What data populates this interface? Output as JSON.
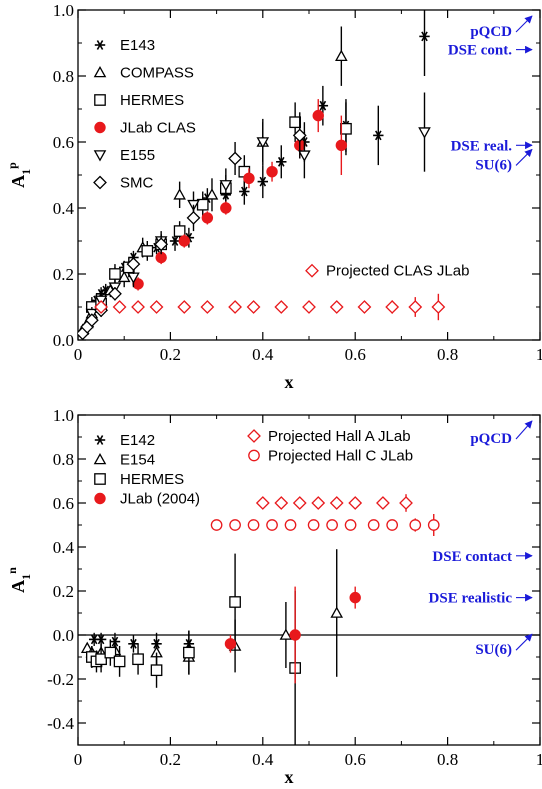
{
  "colors": {
    "red": "#e8191c",
    "black": "#000000",
    "blue": "#1a1ad9"
  },
  "chart_data": [
    {
      "type": "scatter",
      "panel": "top",
      "xlabel": "x",
      "ylabel": "A1p",
      "ylabel_main": "A",
      "ylabel_sub": "1",
      "ylabel_sup": "p",
      "xlim": [
        0,
        1
      ],
      "ylim": [
        0,
        1
      ],
      "x_ticks": [
        "0",
        "0.2",
        "0.4",
        "0.6",
        "0.8",
        "1"
      ],
      "y_ticks": [
        "0.0",
        "0.2",
        "0.4",
        "0.6",
        "0.8",
        "1.0"
      ],
      "legend_placement": "top-left",
      "series": [
        {
          "name": "E143",
          "marker": "asterisk",
          "color": "#000000",
          "points": [
            [
              0.03,
              0.09,
              0.02
            ],
            [
              0.04,
              0.12,
              0.02
            ],
            [
              0.05,
              0.14,
              0.02
            ],
            [
              0.06,
              0.15,
              0.02
            ],
            [
              0.08,
              0.2,
              0.02
            ],
            [
              0.1,
              0.22,
              0.02
            ],
            [
              0.12,
              0.25,
              0.02
            ],
            [
              0.15,
              0.27,
              0.02
            ],
            [
              0.17,
              0.28,
              0.02
            ],
            [
              0.21,
              0.3,
              0.03
            ],
            [
              0.24,
              0.31,
              0.03
            ],
            [
              0.28,
              0.43,
              0.03
            ],
            [
              0.32,
              0.44,
              0.04
            ],
            [
              0.36,
              0.45,
              0.04
            ],
            [
              0.4,
              0.48,
              0.05
            ],
            [
              0.44,
              0.54,
              0.05
            ],
            [
              0.49,
              0.6,
              0.06
            ],
            [
              0.53,
              0.71,
              0.06
            ],
            [
              0.58,
              0.65,
              0.08
            ],
            [
              0.65,
              0.62,
              0.09
            ],
            [
              0.75,
              0.92,
              0.12
            ]
          ]
        },
        {
          "name": "COMPASS",
          "marker": "triangle-up",
          "color": "#000000",
          "points": [
            [
              0.01,
              0.03,
              0.01
            ],
            [
              0.02,
              0.05,
              0.01
            ],
            [
              0.03,
              0.08,
              0.01
            ],
            [
              0.05,
              0.12,
              0.02
            ],
            [
              0.07,
              0.15,
              0.02
            ],
            [
              0.1,
              0.19,
              0.03
            ],
            [
              0.14,
              0.28,
              0.03
            ],
            [
              0.22,
              0.44,
              0.04
            ],
            [
              0.29,
              0.44,
              0.05
            ],
            [
              0.4,
              0.6,
              0.07
            ],
            [
              0.57,
              0.86,
              0.09
            ]
          ]
        },
        {
          "name": "HERMES",
          "marker": "square",
          "color": "#000000",
          "points": [
            [
              0.03,
              0.1,
              0.03
            ],
            [
              0.05,
              0.11,
              0.03
            ],
            [
              0.08,
              0.2,
              0.03
            ],
            [
              0.11,
              0.22,
              0.03
            ],
            [
              0.15,
              0.27,
              0.03
            ],
            [
              0.18,
              0.29,
              0.03
            ],
            [
              0.22,
              0.33,
              0.03
            ],
            [
              0.27,
              0.41,
              0.04
            ],
            [
              0.32,
              0.46,
              0.04
            ],
            [
              0.36,
              0.51,
              0.05
            ],
            [
              0.47,
              0.66,
              0.06
            ],
            [
              0.58,
              0.64,
              0.08
            ]
          ]
        },
        {
          "name": "JLab CLAS",
          "marker": "filled-circle",
          "color": "#e8191c",
          "points": [
            [
              0.13,
              0.17,
              0.02
            ],
            [
              0.18,
              0.25,
              0.02
            ],
            [
              0.23,
              0.3,
              0.02
            ],
            [
              0.28,
              0.37,
              0.02
            ],
            [
              0.32,
              0.4,
              0.02
            ],
            [
              0.37,
              0.49,
              0.03
            ],
            [
              0.42,
              0.51,
              0.03
            ],
            [
              0.48,
              0.59,
              0.04
            ],
            [
              0.52,
              0.68,
              0.05
            ],
            [
              0.57,
              0.59,
              0.09
            ]
          ]
        },
        {
          "name": "E155",
          "marker": "triangle-down",
          "color": "#000000",
          "points": [
            [
              0.03,
              0.08,
              0.02
            ],
            [
              0.05,
              0.12,
              0.02
            ],
            [
              0.08,
              0.16,
              0.02
            ],
            [
              0.12,
              0.19,
              0.03
            ],
            [
              0.18,
              0.3,
              0.03
            ],
            [
              0.25,
              0.41,
              0.04
            ],
            [
              0.32,
              0.47,
              0.05
            ],
            [
              0.4,
              0.6,
              0.06
            ],
            [
              0.49,
              0.56,
              0.07
            ],
            [
              0.75,
              0.63,
              0.12
            ]
          ]
        },
        {
          "name": "SMC",
          "marker": "diamond",
          "color": "#000000",
          "points": [
            [
              0.01,
              0.02,
              0.01
            ],
            [
              0.02,
              0.04,
              0.01
            ],
            [
              0.03,
              0.06,
              0.01
            ],
            [
              0.05,
              0.09,
              0.02
            ],
            [
              0.08,
              0.14,
              0.02
            ],
            [
              0.12,
              0.23,
              0.03
            ],
            [
              0.18,
              0.29,
              0.03
            ],
            [
              0.25,
              0.37,
              0.04
            ],
            [
              0.34,
              0.55,
              0.05
            ],
            [
              0.48,
              0.62,
              0.07
            ]
          ]
        },
        {
          "name": "Projected CLAS JLab",
          "marker": "diamond",
          "color": "#e8191c",
          "points": [
            [
              0.05,
              0.1,
              0.01
            ],
            [
              0.09,
              0.1,
              0.01
            ],
            [
              0.13,
              0.1,
              0.01
            ],
            [
              0.17,
              0.1,
              0.01
            ],
            [
              0.23,
              0.1,
              0.01
            ],
            [
              0.28,
              0.1,
              0.01
            ],
            [
              0.34,
              0.1,
              0.01
            ],
            [
              0.38,
              0.1,
              0.01
            ],
            [
              0.44,
              0.1,
              0.01
            ],
            [
              0.5,
              0.1,
              0.01
            ],
            [
              0.56,
              0.1,
              0.01
            ],
            [
              0.62,
              0.1,
              0.01
            ],
            [
              0.68,
              0.1,
              0.02
            ],
            [
              0.73,
              0.1,
              0.03
            ],
            [
              0.78,
              0.1,
              0.04
            ]
          ]
        }
      ],
      "legend": [
        {
          "label": "E143",
          "marker": "asterisk",
          "color": "#000000"
        },
        {
          "label": "COMPASS",
          "marker": "triangle-up",
          "color": "#000000"
        },
        {
          "label": "HERMES",
          "marker": "square",
          "color": "#000000"
        },
        {
          "label": "JLab CLAS",
          "marker": "filled-circle",
          "color": "#e8191c"
        },
        {
          "label": "E155",
          "marker": "triangle-down",
          "color": "#000000"
        },
        {
          "label": "SMC",
          "marker": "diamond",
          "color": "#000000"
        }
      ],
      "extra_legend": {
        "label": "Projected CLAS JLab",
        "marker": "diamond",
        "color": "#e8191c"
      },
      "annotations": [
        {
          "text": "pQCD",
          "value": 1.0
        },
        {
          "text": "DSE cont.",
          "value": 0.88
        },
        {
          "text": "DSE real.",
          "value": 0.59
        },
        {
          "text": "SU(6)",
          "value": 0.56
        }
      ]
    },
    {
      "type": "scatter",
      "panel": "bottom",
      "xlabel": "x",
      "ylabel": "A1n",
      "ylabel_main": "A",
      "ylabel_sub": "1",
      "ylabel_sup": "n",
      "xlim": [
        0,
        1
      ],
      "ylim": [
        -0.5,
        1
      ],
      "x_ticks": [
        "0",
        "0.2",
        "0.4",
        "0.6",
        "0.8",
        "1"
      ],
      "y_ticks": [
        "-0.4",
        "-0.2",
        "0.0",
        "0.2",
        "0.4",
        "0.6",
        "0.8",
        "1.0"
      ],
      "legend_placement": "top-left",
      "series": [
        {
          "name": "E142",
          "marker": "asterisk",
          "color": "#000000",
          "points": [
            [
              0.035,
              -0.02,
              0.03
            ],
            [
              0.05,
              -0.02,
              0.03
            ],
            [
              0.08,
              -0.03,
              0.04
            ],
            [
              0.12,
              -0.04,
              0.04
            ],
            [
              0.17,
              -0.04,
              0.05
            ],
            [
              0.24,
              -0.04,
              0.06
            ]
          ]
        },
        {
          "name": "E154",
          "marker": "triangle-up",
          "color": "#000000",
          "points": [
            [
              0.02,
              -0.06,
              0.02
            ],
            [
              0.03,
              -0.08,
              0.03
            ],
            [
              0.05,
              -0.08,
              0.04
            ],
            [
              0.08,
              -0.07,
              0.05
            ],
            [
              0.17,
              -0.08,
              0.06
            ],
            [
              0.24,
              -0.1,
              0.08
            ],
            [
              0.34,
              -0.05,
              0.12
            ],
            [
              0.45,
              0.0,
              0.15
            ],
            [
              0.56,
              0.1,
              0.29
            ]
          ]
        },
        {
          "name": "HERMES",
          "marker": "square",
          "color": "#000000",
          "points": [
            [
              0.03,
              -0.1,
              0.05
            ],
            [
              0.04,
              -0.12,
              0.05
            ],
            [
              0.05,
              -0.11,
              0.06
            ],
            [
              0.07,
              -0.08,
              0.06
            ],
            [
              0.09,
              -0.12,
              0.07
            ],
            [
              0.13,
              -0.11,
              0.07
            ],
            [
              0.17,
              -0.16,
              0.08
            ],
            [
              0.24,
              -0.08,
              0.1
            ],
            [
              0.34,
              0.15,
              0.22
            ],
            [
              0.47,
              -0.15,
              0.35
            ]
          ]
        },
        {
          "name": "JLab (2004)",
          "marker": "filled-circle",
          "color": "#e8191c",
          "points": [
            [
              0.33,
              -0.04,
              0.04
            ],
            [
              0.47,
              0.0,
              0.22
            ],
            [
              0.6,
              0.17,
              0.05
            ]
          ]
        },
        {
          "name": "Projected Hall A JLab",
          "marker": "diamond",
          "color": "#e8191c",
          "points": [
            [
              0.4,
              0.6,
              0.01
            ],
            [
              0.44,
              0.6,
              0.01
            ],
            [
              0.48,
              0.6,
              0.01
            ],
            [
              0.52,
              0.6,
              0.01
            ],
            [
              0.56,
              0.6,
              0.01
            ],
            [
              0.6,
              0.6,
              0.01
            ],
            [
              0.66,
              0.6,
              0.02
            ],
            [
              0.71,
              0.6,
              0.04
            ]
          ]
        },
        {
          "name": "Projected Hall C JLab",
          "marker": "circle",
          "color": "#e8191c",
          "points": [
            [
              0.3,
              0.5,
              0.01
            ],
            [
              0.34,
              0.5,
              0.01
            ],
            [
              0.38,
              0.5,
              0.01
            ],
            [
              0.42,
              0.5,
              0.01
            ],
            [
              0.46,
              0.5,
              0.01
            ],
            [
              0.51,
              0.5,
              0.01
            ],
            [
              0.55,
              0.5,
              0.01
            ],
            [
              0.59,
              0.5,
              0.01
            ],
            [
              0.64,
              0.5,
              0.01
            ],
            [
              0.68,
              0.5,
              0.02
            ],
            [
              0.73,
              0.5,
              0.03
            ],
            [
              0.77,
              0.5,
              0.05
            ]
          ]
        }
      ],
      "legend": [
        {
          "label": "E142",
          "marker": "asterisk",
          "color": "#000000"
        },
        {
          "label": "E154",
          "marker": "triangle-up",
          "color": "#000000"
        },
        {
          "label": "HERMES",
          "marker": "square",
          "color": "#000000"
        },
        {
          "label": "JLab (2004)",
          "marker": "filled-circle",
          "color": "#e8191c"
        }
      ],
      "legend2": [
        {
          "label": "Projected Hall A JLab",
          "marker": "diamond",
          "color": "#e8191c"
        },
        {
          "label": "Projected Hall C JLab",
          "marker": "circle",
          "color": "#e8191c"
        }
      ],
      "reference_line": 0.0,
      "annotations": [
        {
          "text": "pQCD",
          "value": 1.0
        },
        {
          "text": "DSE contact",
          "value": 0.36
        },
        {
          "text": "DSE realistic",
          "value": 0.17
        },
        {
          "text": "SU(6)",
          "value": 0.0
        }
      ]
    }
  ]
}
